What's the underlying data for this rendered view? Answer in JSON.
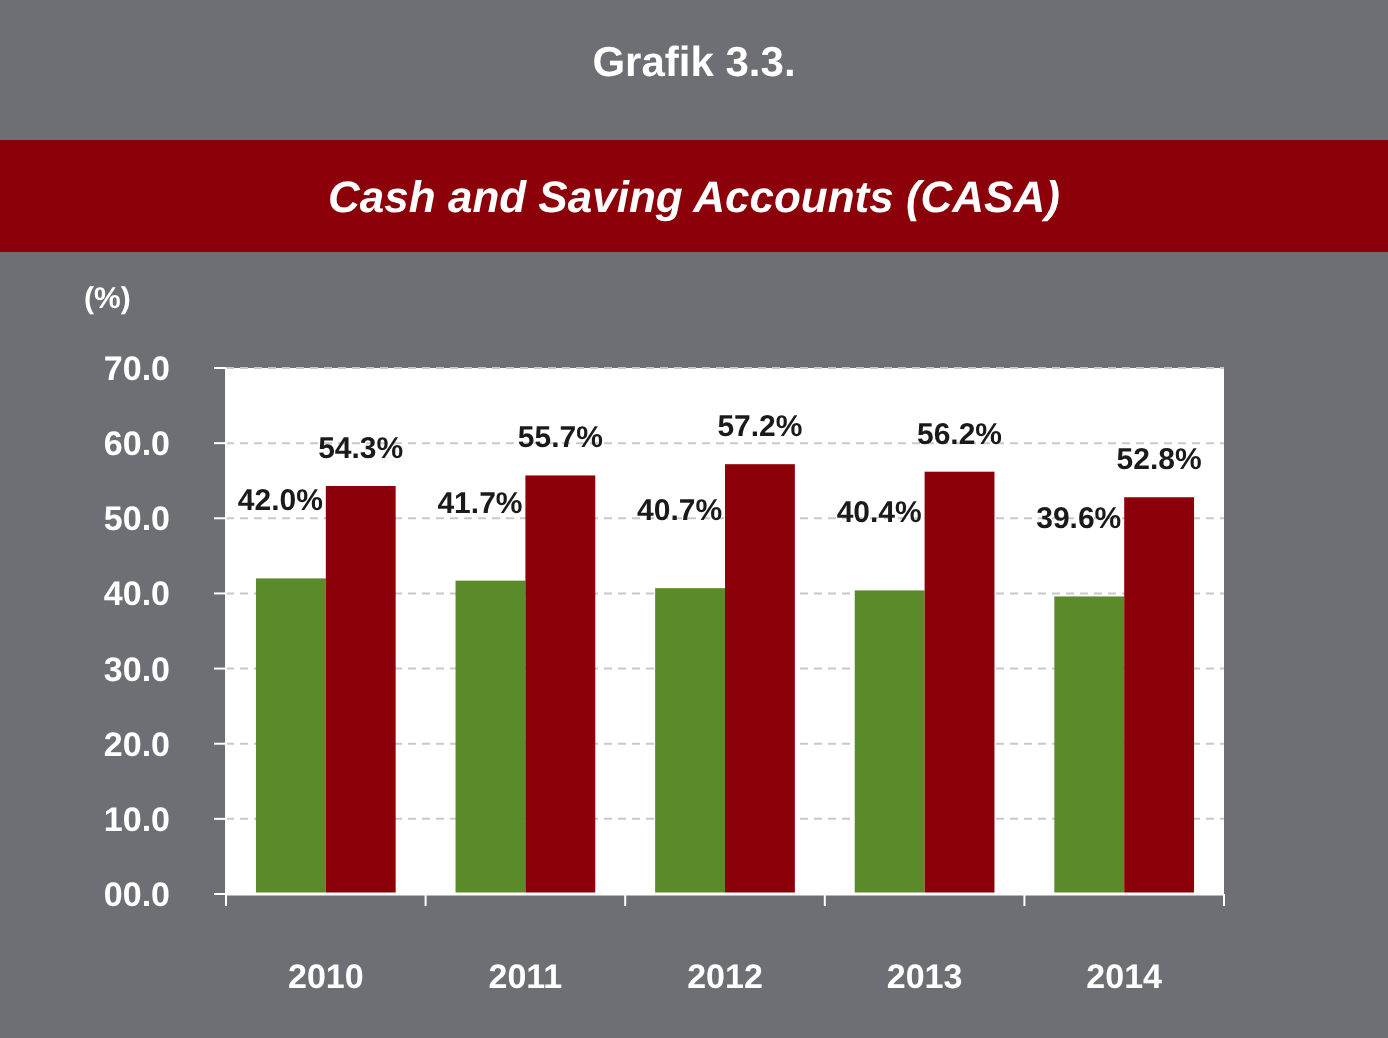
{
  "chart_data": {
    "type": "bar",
    "title": "Grafik 3.3.",
    "subtitle": "Cash and Saving Accounts (CASA)",
    "ylabel": "(%)",
    "categories": [
      "2010",
      "2011",
      "2012",
      "2013",
      "2014"
    ],
    "series": [
      {
        "color": "#5b8a2b",
        "values": [
          42.0,
          41.7,
          40.7,
          40.4,
          39.6
        ],
        "value_labels": [
          "42.0%",
          "41.7%",
          "40.7%",
          "40.4%",
          "39.6%"
        ]
      },
      {
        "color": "#8c0009",
        "values": [
          54.3,
          55.7,
          57.2,
          56.2,
          52.8
        ],
        "value_labels": [
          "54.3%",
          "55.7%",
          "57.2%",
          "56.2%",
          "52.8%"
        ]
      }
    ],
    "ylim": [
      0,
      70
    ],
    "yticks": [
      {
        "value": 0,
        "label": "00.0"
      },
      {
        "value": 10,
        "label": "10.0"
      },
      {
        "value": 20,
        "label": "20.0"
      },
      {
        "value": 30,
        "label": "30.0"
      },
      {
        "value": 40,
        "label": "40.0"
      },
      {
        "value": 50,
        "label": "50.0"
      },
      {
        "value": 60,
        "label": "60.0"
      },
      {
        "value": 70,
        "label": "70.0"
      }
    ],
    "grid": "y"
  }
}
